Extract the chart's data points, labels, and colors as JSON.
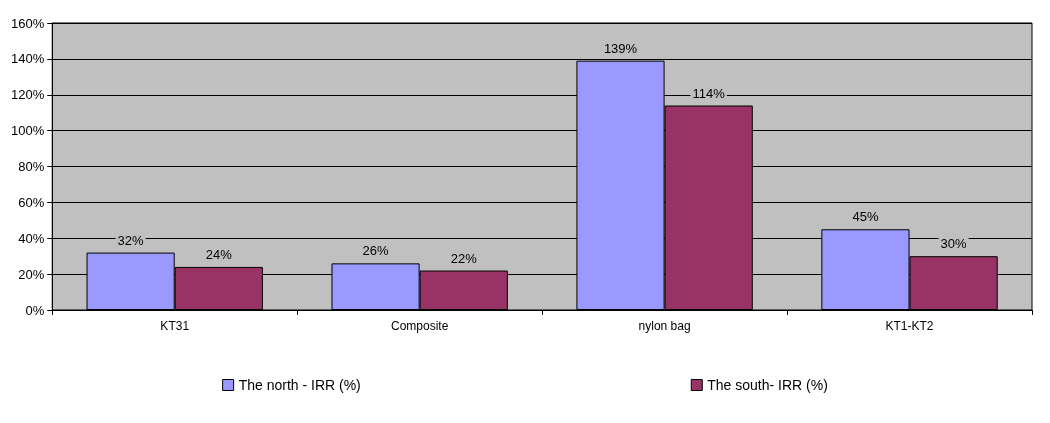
{
  "chart_data": {
    "type": "bar",
    "categories": [
      "KT31",
      "Composite",
      "nylon bag",
      "KT1-KT2"
    ],
    "series": [
      {
        "name": "The north - IRR (%)",
        "color": "#9999ff",
        "values": [
          32,
          26,
          139,
          45
        ],
        "value_labels": [
          "32%",
          "26%",
          "139%",
          "45%"
        ]
      },
      {
        "name": "The south- IRR (%)",
        "color": "#993366",
        "values": [
          24,
          22,
          114,
          30
        ],
        "value_labels": [
          "24%",
          "22%",
          "114%",
          "30%"
        ]
      }
    ],
    "ylim": [
      0,
      160
    ],
    "yticks": [
      {
        "value": 0,
        "label": "0%"
      },
      {
        "value": 20,
        "label": "20%"
      },
      {
        "value": 40,
        "label": "40%"
      },
      {
        "value": 60,
        "label": "60%"
      },
      {
        "value": 80,
        "label": "80%"
      },
      {
        "value": 100,
        "label": "100%"
      },
      {
        "value": 120,
        "label": "120%"
      },
      {
        "value": 140,
        "label": "140%"
      },
      {
        "value": 160,
        "label": "160%"
      }
    ],
    "grid": "y",
    "legend": "bottom"
  }
}
